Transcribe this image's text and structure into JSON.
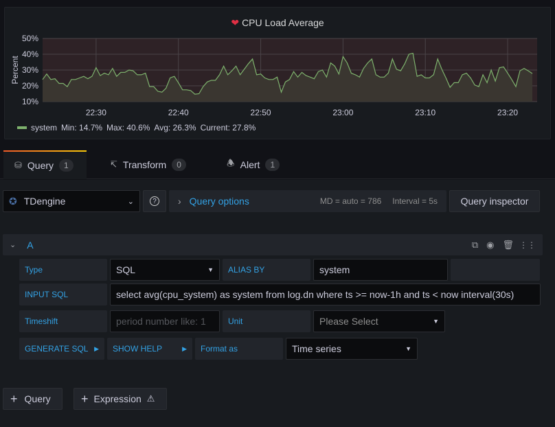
{
  "panel": {
    "title": "CPU Load Average",
    "title_icon": "broken-heart-icon",
    "legend": {
      "series": "system",
      "min": "Min: 14.7%",
      "max": "Max: 40.6%",
      "avg": "Avg: 26.3%",
      "current": "Current: 27.8%"
    }
  },
  "chart_data": {
    "type": "area",
    "ylabel": "Percent",
    "ylim": [
      10,
      50
    ],
    "yticks": [
      "10%",
      "20%",
      "30%",
      "40%",
      "50%"
    ],
    "xticks": [
      "22:30",
      "22:40",
      "22:50",
      "23:00",
      "23:10",
      "23:20"
    ],
    "x_start": "22:23:30",
    "x_end": "23:23:00",
    "interval": "30s",
    "grid": true,
    "legend_placement": "bottom-left",
    "series": [
      {
        "name": "system",
        "color": "#7eb26d",
        "values": [
          24,
          27.5,
          24,
          24.5,
          21.5,
          21.5,
          19.5,
          24,
          24,
          25,
          26,
          24.5,
          26,
          31.5,
          26.5,
          28,
          27,
          31,
          26,
          28.5,
          28.5,
          30,
          29.5,
          27,
          27,
          28,
          19.5,
          19.5,
          16.5,
          16,
          18.5,
          25,
          26,
          22,
          17.5,
          17.5,
          17,
          14.7,
          15,
          19.5,
          22.5,
          23.5,
          23.5,
          27,
          32.5,
          27,
          29.5,
          32.5,
          27,
          30.5,
          34,
          37,
          27,
          27.5,
          25,
          24,
          24,
          25.5,
          16,
          22.5,
          24,
          29,
          25.5,
          28.5,
          26.5,
          25.5,
          24.5,
          29,
          30,
          25.5,
          34.5,
          32.5,
          27.5,
          38.5,
          34.5,
          28,
          27,
          25.5,
          31,
          34.5,
          37,
          27,
          25.5,
          25.5,
          28,
          37,
          30.5,
          29.5,
          34,
          40,
          40.6,
          26,
          27,
          25,
          25,
          27,
          37,
          30.5,
          25,
          19,
          22,
          22,
          27,
          28,
          25,
          20.5,
          19.5,
          27,
          22,
          30,
          23,
          31.5,
          32,
          28,
          24,
          19.5,
          29.5,
          31,
          29.5,
          27.8
        ]
      }
    ]
  },
  "tabs": [
    {
      "label": "Query",
      "count": "1",
      "icon": "database-icon"
    },
    {
      "label": "Transform",
      "count": "0",
      "icon": "transform-icon"
    },
    {
      "label": "Alert",
      "count": "1",
      "icon": "bell-icon"
    }
  ],
  "datasource": {
    "name": "TDengine"
  },
  "query_options": {
    "label": "Query options",
    "md": "MD = auto = 786",
    "interval": "Interval = 5s"
  },
  "query_inspector": "Query inspector",
  "query": {
    "ref": "A",
    "type_label": "Type",
    "type_value": "SQL",
    "alias_label": "ALIAS BY",
    "alias_value": "system",
    "sql_label": "INPUT SQL",
    "sql_value": "select  avg(cpu_system) as system from log.dn where ts >= now-1h and ts < now  interval(30s)",
    "timeshift_label": "Timeshift",
    "timeshift_placeholder": "period number like: 1",
    "unit_label": "Unit",
    "unit_placeholder": "Please Select",
    "generate_sql": "GENERATE SQL",
    "show_help": "SHOW HELP",
    "format_label": "Format as",
    "format_value": "Time series"
  },
  "add_query": "Query",
  "add_expression": "Expression"
}
